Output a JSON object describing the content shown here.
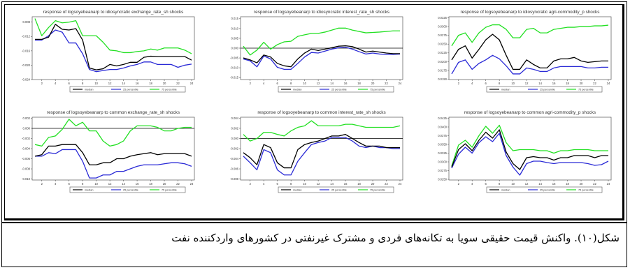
{
  "colors": {
    "median": "#000000",
    "p25": "#2a2ad6",
    "p75": "#22e022"
  },
  "legend": [
    "median",
    "25 percentile",
    "75 percentile"
  ],
  "caption": "شکل(۱۰). واکنش قیمت حقیقی سویا به تکانه‌های فردی و مشترک غیرنفتی در کشورهای واردکننده نفت",
  "chart_data": [
    {
      "type": "line",
      "title": "response of logsoyebeanarp to idiosyncratic exchange_rate_sh shocks",
      "x": [
        1,
        2,
        3,
        4,
        5,
        6,
        7,
        8,
        9,
        10,
        11,
        12,
        13,
        14,
        15,
        16,
        17,
        18,
        19,
        20,
        21,
        22,
        23,
        24
      ],
      "xticks": [
        "2",
        "4",
        "6",
        "8",
        "10",
        "12",
        "14",
        "16",
        "18",
        "20",
        "22",
        "24"
      ],
      "ylim": [
        -0.024,
        -0.0065
      ],
      "yticks": [
        "-0.008",
        "-0.012",
        "-0.016",
        "-0.020",
        "-0.024"
      ],
      "zero_line": false,
      "series": [
        {
          "name": "median",
          "values": [
            -0.0128,
            -0.0128,
            -0.0122,
            -0.0086,
            -0.01,
            -0.0102,
            -0.0098,
            -0.013,
            -0.0208,
            -0.0213,
            -0.021,
            -0.0198,
            -0.0202,
            -0.0198,
            -0.0192,
            -0.0192,
            -0.0178,
            -0.0175,
            -0.0176,
            -0.0176,
            -0.0176,
            -0.0176,
            -0.0176,
            -0.0186
          ]
        },
        {
          "name": "25 percentile",
          "values": [
            -0.013,
            -0.013,
            -0.0118,
            -0.0102,
            -0.0108,
            -0.0138,
            -0.0138,
            -0.0168,
            -0.0212,
            -0.0218,
            -0.0215,
            -0.0212,
            -0.0212,
            -0.0208,
            -0.0202,
            -0.0198,
            -0.0191,
            -0.0191,
            -0.0198,
            -0.0198,
            -0.0198,
            -0.0206,
            -0.02,
            -0.0197
          ]
        },
        {
          "name": "75 percentile",
          "values": [
            -0.007,
            -0.0118,
            -0.0095,
            -0.0076,
            -0.0082,
            -0.008,
            -0.0076,
            -0.0118,
            -0.0118,
            -0.0118,
            -0.0136,
            -0.0158,
            -0.016,
            -0.0165,
            -0.0165,
            -0.0162,
            -0.016,
            -0.0155,
            -0.0158,
            -0.0152,
            -0.0152,
            -0.0152,
            -0.0158,
            -0.0168
          ]
        }
      ]
    },
    {
      "type": "line",
      "title": "response of logsoyebeanarp to idiosyncratic interest_rate_sh shocks",
      "x": [
        1,
        2,
        3,
        4,
        5,
        6,
        7,
        8,
        9,
        10,
        11,
        12,
        13,
        14,
        15,
        16,
        17,
        18,
        19,
        20,
        21,
        22,
        23,
        24
      ],
      "xticks": [
        "2",
        "4",
        "6",
        "8",
        "10",
        "12",
        "14",
        "16",
        "18",
        "20",
        "22",
        "24"
      ],
      "ylim": [
        -0.016,
        0.016
      ],
      "yticks": [
        "0.015",
        "0.010",
        "0.005",
        "0.000",
        "-0.005",
        "-0.010",
        "-0.015"
      ],
      "zero_line": true,
      "series": [
        {
          "name": "median",
          "values": [
            -0.005,
            -0.006,
            -0.0075,
            -0.0035,
            -0.0045,
            -0.0078,
            -0.009,
            -0.0095,
            -0.0055,
            -0.0025,
            -0.0005,
            -0.0012,
            -0.0005,
            0.0002,
            0.001,
            0.0012,
            0.0008,
            -0.0005,
            -0.002,
            -0.0015,
            -0.002,
            -0.0025,
            -0.0028,
            -0.0028
          ]
        },
        {
          "name": "25 percentile",
          "values": [
            -0.0055,
            -0.0065,
            -0.0095,
            -0.004,
            -0.0055,
            -0.0098,
            -0.0108,
            -0.0108,
            -0.0078,
            -0.0045,
            -0.0022,
            -0.0025,
            -0.0015,
            -0.0005,
            0.0002,
            0.0005,
            -0.0005,
            -0.0018,
            -0.003,
            -0.0025,
            -0.003,
            -0.0032,
            -0.0032,
            -0.003
          ]
        },
        {
          "name": "75 percentile",
          "values": [
            0.001,
            -0.0035,
            -0.001,
            0.003,
            -0.0005,
            0.0018,
            0.0032,
            0.0035,
            0.006,
            0.0068,
            0.0075,
            0.0075,
            0.0082,
            0.0092,
            0.0102,
            0.0102,
            0.0092,
            0.0085,
            0.0078,
            0.008,
            0.0082,
            0.0085,
            0.0088,
            0.0088
          ]
        }
      ]
    },
    {
      "type": "line",
      "title": "response of logsoyebeanarp to idiosyncratic agri-commodity_p shocks",
      "x": [
        1,
        2,
        3,
        4,
        5,
        6,
        7,
        8,
        9,
        10,
        11,
        12,
        13,
        14,
        15,
        16,
        17,
        18,
        19,
        20,
        21,
        22,
        23,
        24
      ],
      "xticks": [
        "2",
        "4",
        "6",
        "8",
        "10",
        "12",
        "14",
        "16",
        "18",
        "20",
        "22",
        "24"
      ],
      "ylim": [
        0.0149,
        0.0328
      ],
      "yticks": [
        "0.0325",
        "0.0300",
        "0.0275",
        "0.0250",
        "0.0225",
        "0.0200",
        "0.0175",
        "0.0150"
      ],
      "zero_line": false,
      "series": [
        {
          "name": "median",
          "values": [
            0.0205,
            0.0235,
            0.0245,
            0.021,
            0.0235,
            0.0262,
            0.0278,
            0.0262,
            0.0218,
            0.0178,
            0.0178,
            0.0205,
            0.0192,
            0.0182,
            0.0182,
            0.0202,
            0.0208,
            0.0208,
            0.0212,
            0.0202,
            0.0198,
            0.02,
            0.0202,
            0.0202
          ]
        },
        {
          "name": "25 percentile",
          "values": [
            0.0165,
            0.0198,
            0.0205,
            0.0178,
            0.0195,
            0.0205,
            0.0218,
            0.0208,
            0.0188,
            0.0165,
            0.0165,
            0.0182,
            0.0178,
            0.0172,
            0.0172,
            0.0182,
            0.0186,
            0.0186,
            0.0186,
            0.0186,
            0.0182,
            0.0182,
            0.0184,
            0.0184
          ]
        },
        {
          "name": "75 percentile",
          "values": [
            0.0245,
            0.0275,
            0.0282,
            0.0255,
            0.0282,
            0.0298,
            0.0305,
            0.0305,
            0.0292,
            0.0268,
            0.0268,
            0.0292,
            0.0295,
            0.0282,
            0.0282,
            0.0292,
            0.0295,
            0.0298,
            0.0298,
            0.03,
            0.03,
            0.0302,
            0.0302,
            0.0304
          ]
        }
      ]
    },
    {
      "type": "line",
      "title": "response of logsoyebeanarp to common exchange_rate_sh shocks",
      "x": [
        1,
        2,
        3,
        4,
        5,
        6,
        7,
        8,
        9,
        10,
        11,
        12,
        13,
        14,
        15,
        16,
        17,
        18,
        19,
        20,
        21,
        22,
        23,
        24
      ],
      "xticks": [
        "2",
        "4",
        "6",
        "8",
        "10",
        "12",
        "14",
        "16",
        "18",
        "20",
        "22",
        "24"
      ],
      "ylim": [
        -0.0102,
        0.0022
      ],
      "yticks": [
        "0.002",
        "0.000",
        "-0.002",
        "-0.004",
        "-0.006",
        "-0.008",
        "-0.010"
      ],
      "zero_line": true,
      "series": [
        {
          "name": "median",
          "values": [
            -0.0055,
            -0.0052,
            -0.0035,
            -0.0035,
            -0.0032,
            -0.0032,
            -0.0032,
            -0.0048,
            -0.0072,
            -0.0072,
            -0.0068,
            -0.0068,
            -0.006,
            -0.006,
            -0.0055,
            -0.0052,
            -0.005,
            -0.0048,
            -0.0052,
            -0.005,
            -0.005,
            -0.005,
            -0.005,
            -0.0055
          ]
        },
        {
          "name": "25 percentile",
          "values": [
            -0.0055,
            -0.0055,
            -0.0048,
            -0.005,
            -0.0042,
            -0.0042,
            -0.0042,
            -0.0065,
            -0.0098,
            -0.0098,
            -0.0092,
            -0.0092,
            -0.0085,
            -0.0085,
            -0.008,
            -0.0075,
            -0.0072,
            -0.0072,
            -0.0072,
            -0.007,
            -0.0068,
            -0.0068,
            -0.007,
            -0.0075
          ]
        },
        {
          "name": "75 percentile",
          "values": [
            -0.0032,
            -0.0035,
            -0.0018,
            -0.0015,
            -0.0002,
            0.0018,
            0.0005,
            0.0012,
            -0.0005,
            -0.0005,
            -0.0025,
            -0.0035,
            -0.0032,
            -0.0025,
            -0.0005,
            0.0005,
            0.0005,
            0.0005,
            0.0002,
            -0.0005,
            -0.0005,
            0.0,
            0.0002,
            0.0002
          ]
        }
      ]
    },
    {
      "type": "line",
      "title": "response of logsoyebeanarp to common interest_rate_sh shocks",
      "x": [
        1,
        2,
        3,
        4,
        5,
        6,
        7,
        8,
        9,
        10,
        11,
        12,
        13,
        14,
        15,
        16,
        17,
        18,
        19,
        20,
        21,
        22,
        23,
        24
      ],
      "xticks": [
        "2",
        "4",
        "6",
        "8",
        "10",
        "12",
        "14",
        "16",
        "18",
        "20",
        "22",
        "24"
      ],
      "ylim": [
        -0.0082,
        0.0042
      ],
      "yticks": [
        "0.004",
        "0.002",
        "0.000",
        "-0.002",
        "-0.004",
        "-0.006",
        "-0.008"
      ],
      "zero_line": true,
      "series": [
        {
          "name": "median",
          "values": [
            -0.0028,
            -0.0038,
            -0.0052,
            -0.0012,
            -0.0018,
            -0.0048,
            -0.0058,
            -0.0058,
            -0.0022,
            -0.0012,
            -0.0008,
            -0.0005,
            0.0,
            0.0005,
            0.0005,
            0.0008,
            0.0,
            -0.0008,
            -0.0015,
            -0.0015,
            -0.0015,
            -0.0018,
            -0.0018,
            -0.0018
          ]
        },
        {
          "name": "25 percentile",
          "values": [
            -0.0035,
            -0.0048,
            -0.0062,
            -0.0022,
            -0.0028,
            -0.0062,
            -0.0072,
            -0.0072,
            -0.0045,
            -0.0028,
            -0.0012,
            -0.0008,
            -0.0005,
            0.0002,
            0.0002,
            0.0002,
            -0.0005,
            -0.0015,
            -0.0018,
            -0.0015,
            -0.0018,
            -0.0018,
            -0.002,
            -0.002
          ]
        },
        {
          "name": "75 percentile",
          "values": [
            0.0008,
            -0.0005,
            0.0,
            0.0012,
            0.0012,
            0.0008,
            0.0005,
            0.0015,
            0.0022,
            0.0025,
            0.0035,
            0.0025,
            0.0025,
            0.0025,
            0.0025,
            0.0028,
            0.0028,
            0.0025,
            0.0022,
            0.0022,
            0.0022,
            0.0022,
            0.0022,
            0.0025
          ]
        }
      ]
    },
    {
      "type": "line",
      "title": "response of logsoyebeanarp to common agri-commodity_p shocks",
      "x": [
        1,
        2,
        3,
        4,
        5,
        6,
        7,
        8,
        9,
        10,
        11,
        12,
        13,
        14,
        15,
        16,
        17,
        18,
        19,
        20,
        21,
        22,
        23,
        24
      ],
      "xticks": [
        "2",
        "4",
        "6",
        "8",
        "10",
        "12",
        "14",
        "16",
        "18",
        "20",
        "22",
        "24"
      ],
      "ylim": [
        0.0248,
        0.0428
      ],
      "yticks": [
        "0.0425",
        "0.0400",
        "0.0375",
        "0.0350",
        "0.0325",
        "0.0300",
        "0.0275",
        "0.0250"
      ],
      "zero_line": false,
      "series": [
        {
          "name": "median",
          "values": [
            0.0285,
            0.0335,
            0.0352,
            0.0332,
            0.0362,
            0.0385,
            0.0368,
            0.0392,
            0.0328,
            0.0295,
            0.0278,
            0.0312,
            0.0315,
            0.0312,
            0.0312,
            0.0305,
            0.0312,
            0.0312,
            0.0318,
            0.0318,
            0.0318,
            0.0312,
            0.0318,
            0.0318
          ]
        },
        {
          "name": "25 percentile",
          "values": [
            0.0282,
            0.0322,
            0.0342,
            0.0325,
            0.0355,
            0.0372,
            0.0358,
            0.0382,
            0.0318,
            0.0285,
            0.0262,
            0.0295,
            0.0302,
            0.0302,
            0.0298,
            0.0295,
            0.0298,
            0.0298,
            0.0298,
            0.0298,
            0.0295,
            0.029,
            0.0292,
            0.0302
          ]
        },
        {
          "name": "75 percentile",
          "values": [
            0.0288,
            0.0348,
            0.0362,
            0.0342,
            0.0375,
            0.0402,
            0.0382,
            0.0405,
            0.0355,
            0.0332,
            0.0335,
            0.0335,
            0.0335,
            0.0332,
            0.0332,
            0.0325,
            0.0332,
            0.0332,
            0.0335,
            0.0335,
            0.0335,
            0.0332,
            0.0332,
            0.0332
          ]
        }
      ]
    }
  ]
}
